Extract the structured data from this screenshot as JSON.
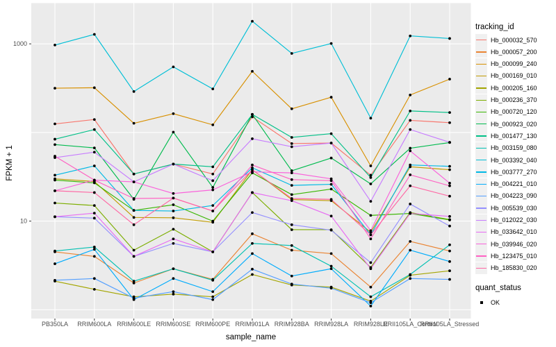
{
  "chart_data": {
    "type": "line",
    "title": "",
    "xlabel": "sample_name",
    "ylabel": "FPKM + 1",
    "y_scale": "log10",
    "ylim": [
      1,
      2500
    ],
    "y_ticks": [
      {
        "value": 1000,
        "label": "1000"
      },
      {
        "value": 10,
        "label": "10"
      }
    ],
    "y_gridlines": [
      1,
      10,
      100,
      1000
    ],
    "grid_on": true,
    "panel_bg": "#EBEBEB",
    "grid_color": "#FFFFFF",
    "axis_text_color": "#4D4D4D",
    "point_color": "#000000",
    "legend_position": "right",
    "categories": [
      "PB350LA",
      "RRIM600LA",
      "RRIM600LE",
      "RRIM600SE",
      "RRIM600PE",
      "RRIM901LA",
      "RRIM928BA",
      "RRIM928LA",
      "RRIM928LE",
      "RRII105LA_Control",
      "RRII105LA_Stressed"
    ],
    "series": [
      {
        "name": "Hb_000032_570",
        "color": "#F8766D",
        "values": [
          125,
          140,
          34,
          44,
          34,
          150,
          75,
          76,
          33,
          137,
          129
        ]
      },
      {
        "name": "Hb_000057_200",
        "color": "#EA8331",
        "values": [
          4.5,
          4.0,
          2.0,
          2.9,
          2.2,
          7.2,
          4.7,
          4.3,
          1.8,
          5.9,
          4.6
        ]
      },
      {
        "name": "Hb_000099_240",
        "color": "#D89000",
        "values": [
          316,
          320,
          127,
          163,
          122,
          490,
          185,
          250,
          42,
          265,
          400
        ]
      },
      {
        "name": "Hb_000169_010",
        "color": "#C09B00",
        "values": [
          30,
          28,
          11,
          10.9,
          9.7,
          38,
          17.5,
          17,
          7.5,
          41,
          38
        ]
      },
      {
        "name": "Hb_000205_160",
        "color": "#A3A500",
        "values": [
          2.1,
          1.7,
          1.4,
          1.5,
          1.4,
          2.5,
          1.9,
          1.8,
          1.25,
          2.45,
          2.75
        ]
      },
      {
        "name": "Hb_000236_370",
        "color": "#7CAE00",
        "values": [
          16,
          15,
          4.7,
          8.1,
          4.5,
          21,
          8.0,
          8.0,
          3.0,
          12.5,
          10.4
        ]
      },
      {
        "name": "Hb_000720_120",
        "color": "#39B600",
        "values": [
          29,
          27,
          13.2,
          15.3,
          10,
          35,
          19.9,
          23,
          11.6,
          12.2,
          10.3
        ]
      },
      {
        "name": "Hb_000923_020",
        "color": "#00BB4E",
        "values": [
          73,
          67,
          17.6,
          101,
          24,
          160,
          37,
          51.5,
          26.3,
          66.5,
          77
        ]
      },
      {
        "name": "Hb_001477_130",
        "color": "#00C087",
        "values": [
          84,
          108,
          34,
          44,
          41,
          160,
          88,
          97,
          31,
          175,
          168
        ]
      },
      {
        "name": "Hb_003159_080",
        "color": "#00C0B2",
        "values": [
          4.6,
          5.1,
          2.1,
          2.9,
          2.15,
          5.6,
          5.3,
          3.1,
          1.4,
          2.5,
          5.4
        ]
      },
      {
        "name": "Hb_003392_040",
        "color": "#00BFD6",
        "values": [
          970,
          1280,
          290,
          550,
          310,
          1800,
          780,
          1010,
          145,
          1230,
          1150
        ]
      },
      {
        "name": "Hb_003777_270",
        "color": "#00B8E5",
        "values": [
          33,
          42,
          13.2,
          13.0,
          15,
          40,
          25.3,
          26,
          7.0,
          43,
          41.5
        ]
      },
      {
        "name": "Hb_004221_010",
        "color": "#00ACFC",
        "values": [
          3.3,
          4.8,
          1.3,
          2.25,
          1.6,
          4.3,
          2.4,
          2.9,
          1.1,
          4.7,
          3.5
        ]
      },
      {
        "name": "Hb_004223_090",
        "color": "#529EFF",
        "values": [
          2.15,
          2.25,
          1.35,
          1.6,
          1.3,
          2.87,
          1.95,
          1.75,
          1.2,
          2.25,
          2.2
        ]
      },
      {
        "name": "Hb_005539_030",
        "color": "#9590FF",
        "values": [
          11.2,
          10.8,
          4.0,
          5.6,
          4.5,
          12.5,
          9.1,
          7.9,
          3.4,
          15.6,
          8.8
        ]
      },
      {
        "name": "Hb_012022_030",
        "color": "#C77CFF",
        "values": [
          52,
          60,
          27.7,
          44,
          28.6,
          85,
          69,
          76,
          16.7,
          108,
          77.5
        ]
      },
      {
        "name": "Hb_033642_010",
        "color": "#E76BF3",
        "values": [
          11.2,
          12.3,
          4.0,
          6.3,
          4.5,
          21,
          17,
          11.4,
          2.9,
          12.2,
          11.3
        ]
      },
      {
        "name": "Hb_039946_020",
        "color": "#FA62DB",
        "values": [
          22,
          29,
          27.7,
          20.5,
          22.5,
          36,
          35,
          30,
          7.8,
          62,
          26.8
        ]
      },
      {
        "name": "Hb_123475_010",
        "color": "#FF61C3",
        "values": [
          54,
          29,
          18,
          18.2,
          13,
          43,
          29.4,
          28.6,
          6.3,
          33.3,
          25
        ]
      },
      {
        "name": "Hb_185830_020",
        "color": "#FF67A4",
        "values": [
          22,
          21,
          9.1,
          18.2,
          13,
          38,
          18,
          17.6,
          7,
          25,
          19.1
        ]
      }
    ],
    "legend": {
      "series_title": "tracking_id",
      "status_title": "quant_status",
      "status_items": [
        {
          "label": "OK",
          "marker": "black-square"
        }
      ]
    }
  }
}
